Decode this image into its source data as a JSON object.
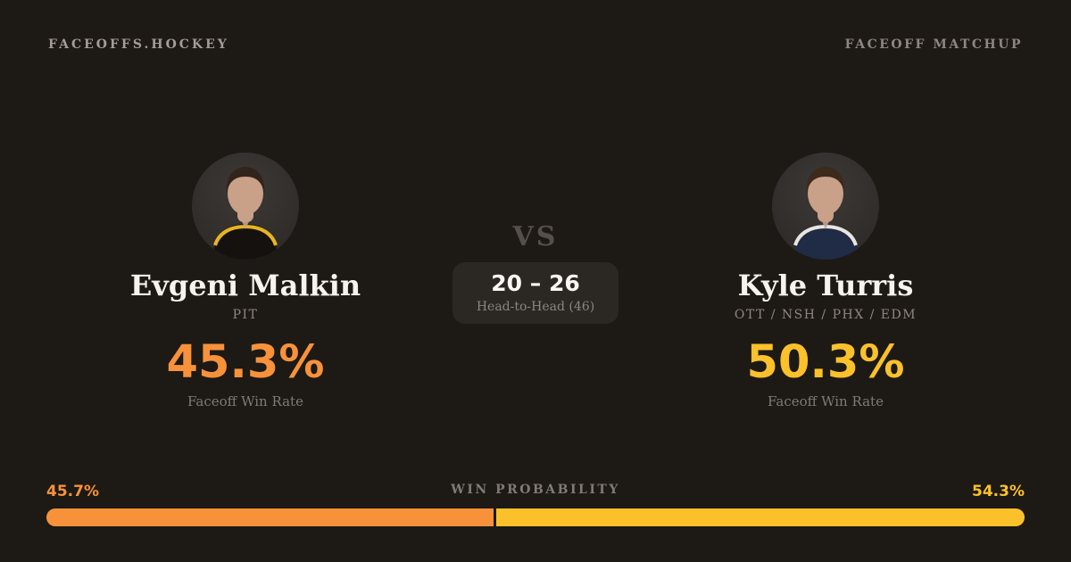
{
  "theme": {
    "background": "#1d1915",
    "orange": "#f7923b",
    "yellow": "#fbc12b",
    "text_light": "#f6f3ee",
    "text_gray": "#8d8781"
  },
  "header": {
    "brand": "FACEOFFS.HOCKEY",
    "label": "FACEOFF MATCHUP"
  },
  "players": {
    "left": {
      "name": "Evgeni Malkin",
      "teams": "PIT",
      "win_rate": "45.3%",
      "win_rate_label": "Faceoff Win Rate",
      "accent": "#f7923b",
      "avatar": {
        "icon": "player-portrait",
        "bg": "#3d3936",
        "jersey": "#14110f",
        "jersey_accent": "#e8b421",
        "skin": "#c9a088",
        "hair": "#32241c"
      }
    },
    "right": {
      "name": "Kyle Turris",
      "teams": "OTT / NSH / PHX / EDM",
      "win_rate": "50.3%",
      "win_rate_label": "Faceoff Win Rate",
      "accent": "#fbc12b",
      "avatar": {
        "icon": "player-portrait",
        "bg": "#3d3936",
        "jersey": "#202b45",
        "jersey_accent": "#e9e5df",
        "skin": "#c9a088",
        "hair": "#3c2a1c"
      }
    }
  },
  "center": {
    "vs": "VS",
    "score": "20 – 26",
    "score_label": "Head-to-Head (46)"
  },
  "win_probability": {
    "title": "WIN PROBABILITY",
    "left_value": "45.7%",
    "right_value": "54.3%",
    "left_pct": 45.7,
    "right_pct": 54.3
  }
}
